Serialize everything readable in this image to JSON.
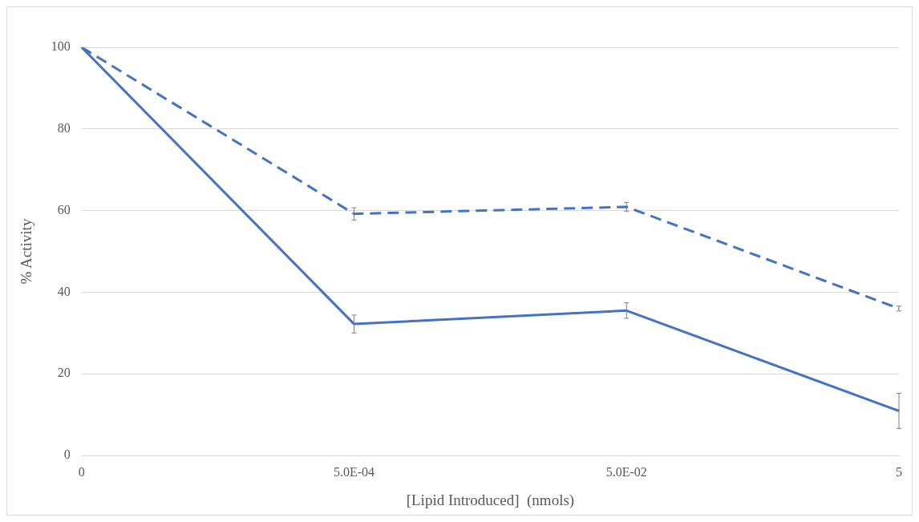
{
  "chart_data": {
    "type": "line",
    "xlabel": "[Lipid Introduced]  (nmols)",
    "ylabel": "% Activity",
    "categories": [
      "0",
      "5.0E-04",
      "5.0E-02",
      "5"
    ],
    "series": [
      {
        "color": "#4472c4",
        "line_style": "solid",
        "values": [
          100,
          32.2,
          35.5,
          10.9
        ],
        "errors": [
          null,
          2.2,
          1.9,
          4.3
        ]
      },
      {
        "color": "#4472c4",
        "line_style": "dashed",
        "values": [
          100,
          59.2,
          60.9,
          36.0
        ],
        "errors": [
          null,
          1.5,
          1.1,
          0.6
        ]
      }
    ],
    "ylim": [
      0,
      100
    ],
    "yticks": [
      0,
      20,
      40,
      60,
      80,
      100
    ],
    "grid": "y",
    "legend": false,
    "marker": "none"
  }
}
